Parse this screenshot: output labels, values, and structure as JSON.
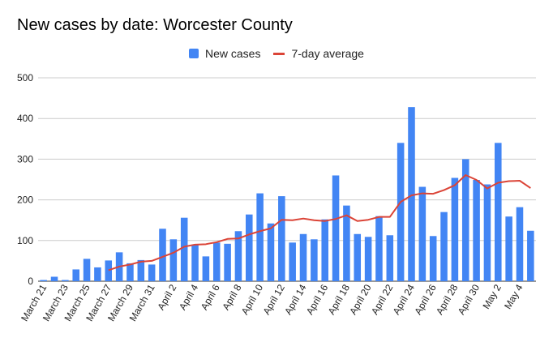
{
  "chart_data": {
    "type": "bar",
    "title": "New cases by date: Worcester County",
    "xlabel": "",
    "ylabel": "",
    "ylim": [
      0,
      500
    ],
    "yticks": [
      0,
      100,
      200,
      300,
      400,
      500
    ],
    "grid": true,
    "legend_position": "top-center",
    "x_tick_labels": [
      "March 21",
      "March 23",
      "March 25",
      "March 27",
      "March 29",
      "March 31",
      "April 2",
      "April 4",
      "April 6",
      "April 8",
      "April 10",
      "April 12",
      "April 14",
      "April 16",
      "April 18",
      "April 20",
      "April 22",
      "April 24",
      "April 26",
      "April 28",
      "April 30",
      "May 2",
      "May 4"
    ],
    "categories": [
      "March 21",
      "March 22",
      "March 23",
      "March 24",
      "March 25",
      "March 26",
      "March 27",
      "March 28",
      "March 29",
      "March 30",
      "March 31",
      "April 1",
      "April 2",
      "April 3",
      "April 4",
      "April 5",
      "April 6",
      "April 7",
      "April 8",
      "April 9",
      "April 10",
      "April 11",
      "April 12",
      "April 13",
      "April 14",
      "April 15",
      "April 16",
      "April 17",
      "April 18",
      "April 19",
      "April 20",
      "April 21",
      "April 22",
      "April 23",
      "April 24",
      "April 25",
      "April 26",
      "April 27",
      "April 28",
      "April 29",
      "April 30",
      "May 1",
      "May 2",
      "May 3",
      "May 4",
      "May 5"
    ],
    "series": [
      {
        "name": "New cases",
        "kind": "bar",
        "color": "#4285f4",
        "values": [
          3,
          11,
          3,
          29,
          55,
          34,
          51,
          71,
          44,
          52,
          41,
          129,
          103,
          156,
          89,
          61,
          95,
          92,
          123,
          164,
          216,
          142,
          209,
          95,
          116,
          103,
          152,
          260,
          186,
          116,
          109,
          160,
          113,
          340,
          428,
          232,
          111,
          170,
          254,
          300,
          249,
          238,
          340,
          159,
          182,
          124
        ]
      },
      {
        "name": "7-day average",
        "kind": "line",
        "color": "#db4437",
        "values": [
          null,
          null,
          null,
          null,
          null,
          null,
          27,
          36,
          41,
          48,
          50,
          60,
          70,
          85,
          90,
          91,
          96,
          104,
          105,
          115,
          123,
          130,
          151,
          150,
          154,
          150,
          148,
          153,
          162,
          148,
          151,
          158,
          158,
          195,
          211,
          216,
          215,
          224,
          236,
          261,
          249,
          228,
          242,
          246,
          247,
          229
        ]
      }
    ]
  }
}
